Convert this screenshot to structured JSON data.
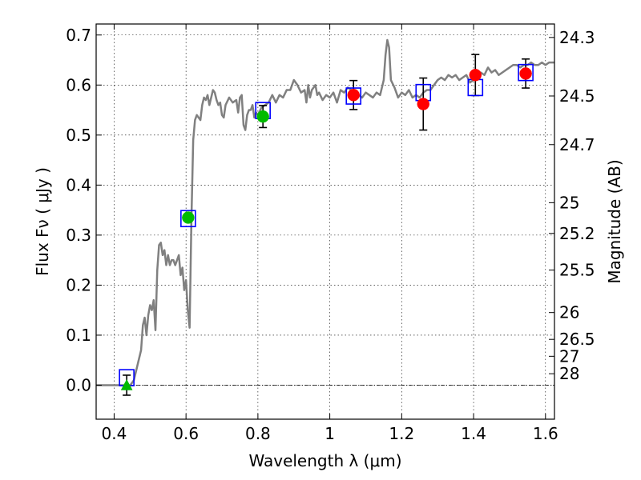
{
  "chart_data": {
    "type": "scatter",
    "xlabel": "Wavelength  λ (μm)",
    "ylabel": "Flux  Fν  ( μJy )",
    "y2label": "Magnitude (AB)",
    "xlim": [
      0.35,
      1.625
    ],
    "ylim": [
      -0.068,
      0.722
    ],
    "x_ticks": [
      0.4,
      0.6,
      0.8,
      1.0,
      1.2,
      1.4,
      1.6
    ],
    "x_tick_labels": [
      "0.4",
      "0.6",
      "0.8",
      "1",
      "1.2",
      "1.4",
      "1.6"
    ],
    "y_ticks": [
      0.0,
      0.1,
      0.2,
      0.3,
      0.4,
      0.5,
      0.6,
      0.7
    ],
    "y_tick_labels": [
      "0.0",
      "0.1",
      "0.2",
      "0.3",
      "0.4",
      "0.5",
      "0.6",
      "0.7"
    ],
    "magnitude_ticks": [
      {
        "label": "24.3",
        "flux": 0.6951
      },
      {
        "label": "24.5",
        "flux": 0.5781
      },
      {
        "label": "24.7",
        "flux": 0.4809
      },
      {
        "label": "25",
        "flux": 0.3648
      },
      {
        "label": "25.2",
        "flux": 0.3034
      },
      {
        "label": "25.5",
        "flux": 0.2301
      },
      {
        "label": "26",
        "flux": 0.1452
      },
      {
        "label": "26.5",
        "flux": 0.0916
      },
      {
        "label": "27",
        "flux": 0.0578
      },
      {
        "label": "28",
        "flux": 0.0229
      }
    ],
    "grid": true,
    "zero_line": true,
    "series": [
      {
        "kind": "model_spectrum",
        "color": "#808080",
        "points": [
          [
            0.35,
            0.0
          ],
          [
            0.42,
            0.0
          ],
          [
            0.445,
            0.0
          ],
          [
            0.455,
            0.01
          ],
          [
            0.465,
            0.04
          ],
          [
            0.475,
            0.07
          ],
          [
            0.48,
            0.12
          ],
          [
            0.485,
            0.135
          ],
          [
            0.49,
            0.1
          ],
          [
            0.495,
            0.14
          ],
          [
            0.5,
            0.16
          ],
          [
            0.505,
            0.15
          ],
          [
            0.51,
            0.17
          ],
          [
            0.515,
            0.11
          ],
          [
            0.52,
            0.23
          ],
          [
            0.525,
            0.28
          ],
          [
            0.53,
            0.285
          ],
          [
            0.535,
            0.26
          ],
          [
            0.54,
            0.27
          ],
          [
            0.545,
            0.24
          ],
          [
            0.55,
            0.26
          ],
          [
            0.555,
            0.24
          ],
          [
            0.56,
            0.25
          ],
          [
            0.565,
            0.25
          ],
          [
            0.57,
            0.24
          ],
          [
            0.575,
            0.25
          ],
          [
            0.58,
            0.26
          ],
          [
            0.585,
            0.22
          ],
          [
            0.59,
            0.235
          ],
          [
            0.595,
            0.19
          ],
          [
            0.6,
            0.21
          ],
          [
            0.605,
            0.15
          ],
          [
            0.61,
            0.115
          ],
          [
            0.615,
            0.33
          ],
          [
            0.62,
            0.49
          ],
          [
            0.625,
            0.53
          ],
          [
            0.63,
            0.54
          ],
          [
            0.635,
            0.535
          ],
          [
            0.64,
            0.53
          ],
          [
            0.645,
            0.56
          ],
          [
            0.65,
            0.575
          ],
          [
            0.655,
            0.57
          ],
          [
            0.66,
            0.58
          ],
          [
            0.665,
            0.56
          ],
          [
            0.67,
            0.575
          ],
          [
            0.675,
            0.59
          ],
          [
            0.68,
            0.585
          ],
          [
            0.685,
            0.57
          ],
          [
            0.69,
            0.56
          ],
          [
            0.695,
            0.565
          ],
          [
            0.7,
            0.54
          ],
          [
            0.705,
            0.535
          ],
          [
            0.71,
            0.56
          ],
          [
            0.72,
            0.575
          ],
          [
            0.73,
            0.565
          ],
          [
            0.74,
            0.57
          ],
          [
            0.745,
            0.545
          ],
          [
            0.75,
            0.575
          ],
          [
            0.755,
            0.58
          ],
          [
            0.76,
            0.52
          ],
          [
            0.765,
            0.51
          ],
          [
            0.77,
            0.54
          ],
          [
            0.775,
            0.55
          ],
          [
            0.78,
            0.55
          ],
          [
            0.785,
            0.56
          ],
          [
            0.79,
            0.535
          ],
          [
            0.795,
            0.545
          ],
          [
            0.8,
            0.54
          ],
          [
            0.81,
            0.555
          ],
          [
            0.82,
            0.56
          ],
          [
            0.83,
            0.565
          ],
          [
            0.84,
            0.58
          ],
          [
            0.85,
            0.565
          ],
          [
            0.86,
            0.58
          ],
          [
            0.87,
            0.575
          ],
          [
            0.88,
            0.59
          ],
          [
            0.89,
            0.59
          ],
          [
            0.9,
            0.61
          ],
          [
            0.91,
            0.6
          ],
          [
            0.92,
            0.585
          ],
          [
            0.93,
            0.59
          ],
          [
            0.935,
            0.565
          ],
          [
            0.94,
            0.6
          ],
          [
            0.945,
            0.575
          ],
          [
            0.95,
            0.59
          ],
          [
            0.96,
            0.6
          ],
          [
            0.965,
            0.58
          ],
          [
            0.97,
            0.585
          ],
          [
            0.98,
            0.57
          ],
          [
            0.99,
            0.58
          ],
          [
            1.0,
            0.575
          ],
          [
            1.01,
            0.585
          ],
          [
            1.02,
            0.565
          ],
          [
            1.03,
            0.59
          ],
          [
            1.04,
            0.585
          ],
          [
            1.05,
            0.595
          ],
          [
            1.06,
            0.59
          ],
          [
            1.07,
            0.58
          ],
          [
            1.08,
            0.58
          ],
          [
            1.09,
            0.575
          ],
          [
            1.1,
            0.585
          ],
          [
            1.11,
            0.58
          ],
          [
            1.12,
            0.575
          ],
          [
            1.13,
            0.585
          ],
          [
            1.14,
            0.58
          ],
          [
            1.15,
            0.61
          ],
          [
            1.155,
            0.66
          ],
          [
            1.16,
            0.69
          ],
          [
            1.165,
            0.675
          ],
          [
            1.17,
            0.61
          ],
          [
            1.18,
            0.595
          ],
          [
            1.19,
            0.575
          ],
          [
            1.2,
            0.585
          ],
          [
            1.21,
            0.58
          ],
          [
            1.22,
            0.59
          ],
          [
            1.23,
            0.575
          ],
          [
            1.24,
            0.58
          ],
          [
            1.25,
            0.575
          ],
          [
            1.26,
            0.585
          ],
          [
            1.27,
            0.59
          ],
          [
            1.28,
            0.59
          ],
          [
            1.29,
            0.6
          ],
          [
            1.3,
            0.61
          ],
          [
            1.31,
            0.615
          ],
          [
            1.32,
            0.61
          ],
          [
            1.33,
            0.62
          ],
          [
            1.34,
            0.615
          ],
          [
            1.35,
            0.62
          ],
          [
            1.36,
            0.61
          ],
          [
            1.37,
            0.615
          ],
          [
            1.38,
            0.62
          ],
          [
            1.39,
            0.605
          ],
          [
            1.4,
            0.61
          ],
          [
            1.41,
            0.615
          ],
          [
            1.42,
            0.625
          ],
          [
            1.43,
            0.62
          ],
          [
            1.44,
            0.635
          ],
          [
            1.45,
            0.625
          ],
          [
            1.46,
            0.63
          ],
          [
            1.47,
            0.62
          ],
          [
            1.48,
            0.625
          ],
          [
            1.49,
            0.63
          ],
          [
            1.5,
            0.635
          ],
          [
            1.51,
            0.64
          ],
          [
            1.52,
            0.64
          ],
          [
            1.53,
            0.635
          ],
          [
            1.54,
            0.64
          ],
          [
            1.55,
            0.64
          ],
          [
            1.56,
            0.645
          ],
          [
            1.57,
            0.64
          ],
          [
            1.58,
            0.64
          ],
          [
            1.59,
            0.645
          ],
          [
            1.6,
            0.64
          ],
          [
            1.61,
            0.645
          ],
          [
            1.625,
            0.645
          ]
        ]
      },
      {
        "kind": "model_photometry",
        "marker": "open-square",
        "color": "#0000ff",
        "points": [
          [
            0.435,
            0.015
          ],
          [
            0.606,
            0.333
          ],
          [
            0.814,
            0.549
          ],
          [
            1.066,
            0.578
          ],
          [
            1.26,
            0.585
          ],
          [
            1.405,
            0.595
          ],
          [
            1.545,
            0.625
          ]
        ]
      },
      {
        "kind": "observed_green",
        "marker": "circle",
        "color": "#00bb00",
        "points": [
          {
            "x": 0.606,
            "y": 0.335,
            "err": 0.0
          },
          {
            "x": 0.814,
            "y": 0.537,
            "err": 0.022
          }
        ]
      },
      {
        "kind": "observed_green_upper",
        "marker": "triangle",
        "color": "#00bb00",
        "points": [
          {
            "x": 0.435,
            "y": 0.0,
            "err": 0.02
          }
        ]
      },
      {
        "kind": "observed_red",
        "marker": "circle",
        "color": "#ff0000",
        "points": [
          {
            "x": 1.066,
            "y": 0.58,
            "err": 0.029
          },
          {
            "x": 1.26,
            "y": 0.562,
            "err": 0.052
          },
          {
            "x": 1.405,
            "y": 0.62,
            "err": 0.041
          },
          {
            "x": 1.545,
            "y": 0.623,
            "err": 0.029
          }
        ]
      }
    ]
  }
}
